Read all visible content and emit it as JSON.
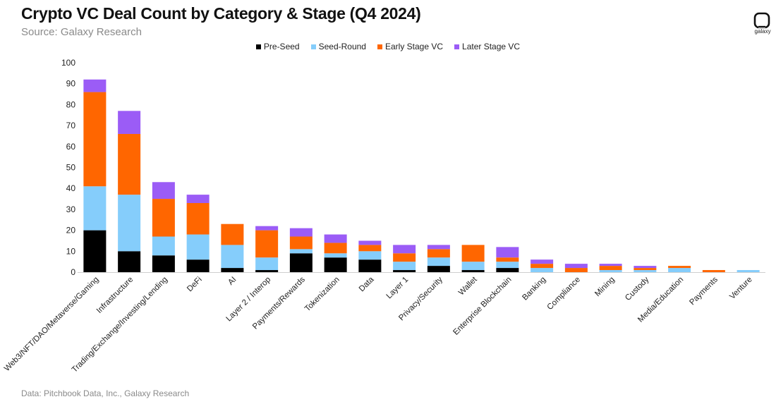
{
  "header": {
    "title": "Crypto VC Deal Count by Category & Stage (Q4 2024)",
    "subtitle": "Source: Galaxy Research"
  },
  "footer": {
    "text": "Data: Pitchbook Data, Inc., Galaxy Research"
  },
  "logo": {
    "text": "galaxy",
    "icon": "galaxy-logo-icon"
  },
  "chart_data": {
    "type": "bar",
    "stacked": true,
    "title": "Crypto VC Deal Count by Category & Stage (Q4 2024)",
    "xlabel": "",
    "ylabel": "",
    "ylim": [
      0,
      100
    ],
    "yticks": [
      0,
      10,
      20,
      30,
      40,
      50,
      60,
      70,
      80,
      90,
      100
    ],
    "grid": false,
    "legend_position": "top-center",
    "categories": [
      "Web3/NFT/DAO/Metaverse/Gaming",
      "Infrastructure",
      "Trading/Exchange/Investing/Lending",
      "DeFi",
      "AI",
      "Layer 2 / Interop",
      "Payments/Rewards",
      "Tokenization",
      "Data",
      "Layer 1",
      "Privacy/Security",
      "Wallet",
      "Enterprise Blockchain",
      "Banking",
      "Compliance",
      "Mining",
      "Custody",
      "Media/Education",
      "Payments",
      "Venture"
    ],
    "series": [
      {
        "name": "Pre-Seed",
        "color": "#000000",
        "values": [
          20,
          10,
          8,
          6,
          2,
          1,
          9,
          7,
          6,
          1,
          3,
          1,
          2,
          0,
          0,
          0,
          0,
          0,
          0,
          0
        ]
      },
      {
        "name": "Seed-Round",
        "color": "#85cdfb",
        "values": [
          21,
          27,
          9,
          12,
          11,
          6,
          2,
          2,
          4,
          4,
          4,
          4,
          3,
          2,
          0,
          1,
          1,
          2,
          0,
          1
        ]
      },
      {
        "name": "Early Stage VC",
        "color": "#ff6600",
        "values": [
          45,
          29,
          18,
          15,
          10,
          13,
          6,
          5,
          3,
          4,
          4,
          8,
          2,
          2,
          2,
          2,
          1,
          1,
          1,
          0
        ]
      },
      {
        "name": "Later Stage VC",
        "color": "#9b5cf6",
        "values": [
          6,
          11,
          8,
          4,
          0,
          2,
          4,
          4,
          2,
          4,
          2,
          0,
          5,
          2,
          2,
          1,
          1,
          0,
          0,
          0
        ]
      }
    ]
  }
}
